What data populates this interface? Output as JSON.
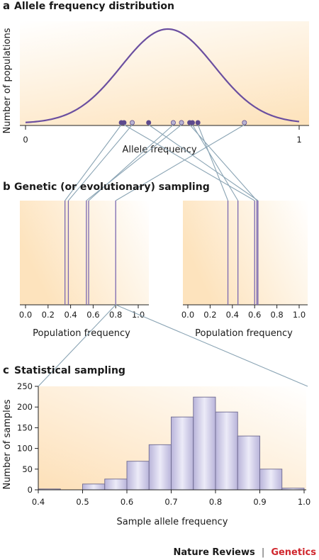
{
  "panels": {
    "a": {
      "letter": "a",
      "title": "Allele frequency distribution"
    },
    "b": {
      "letter": "b",
      "title": "Genetic (or evolutionary) sampling"
    },
    "c": {
      "letter": "c",
      "title": "Statistical sampling"
    }
  },
  "footer": {
    "publisher": "Nature Reviews",
    "separator": "|",
    "journal": "Genetics"
  },
  "colors": {
    "curve": "#6b4fa0",
    "line": "#7a68b0",
    "connector": "#8aa4b4",
    "dot": "#b9b4d2",
    "bar": "#c4c0e0",
    "bar_edge": "#6e6a90",
    "bg": "#fde6c4",
    "accent": "#d0272e"
  },
  "chart_data": [
    {
      "id": "a",
      "type": "line",
      "title": "Allele frequency distribution",
      "xlabel": "Allele frequency",
      "ylabel": "Number of populations",
      "xlim": [
        0,
        1
      ],
      "x_ticks": [
        "0",
        "1"
      ],
      "curve": {
        "mean": 0.52,
        "sd": 0.17
      },
      "points": [
        0.35,
        0.36,
        0.39,
        0.45,
        0.54,
        0.57,
        0.6,
        0.61,
        0.63,
        0.8
      ]
    },
    {
      "id": "b-left",
      "type": "line",
      "xlabel": "Population frequency",
      "xlim": [
        0,
        1
      ],
      "x_ticks": [
        "0.0",
        "0.2",
        "0.4",
        "0.6",
        "0.8",
        "1.0"
      ],
      "lines": [
        0.35,
        0.38,
        0.54,
        0.56,
        0.8
      ]
    },
    {
      "id": "b-right",
      "type": "line",
      "xlabel": "Population frequency",
      "xlim": [
        0,
        1
      ],
      "x_ticks": [
        "0.0",
        "0.2",
        "0.4",
        "0.6",
        "0.8",
        "1.0"
      ],
      "lines": [
        0.36,
        0.45,
        0.6,
        0.62,
        0.63
      ]
    },
    {
      "id": "c",
      "type": "bar",
      "title": "Statistical sampling",
      "xlabel": "Sample allele frequency",
      "ylabel": "Number of samples",
      "xlim": [
        0.4,
        1.0
      ],
      "ylim": [
        0,
        250
      ],
      "x_ticks": [
        "0.4",
        "0.5",
        "0.6",
        "0.7",
        "0.8",
        "0.9",
        "1.0"
      ],
      "y_ticks": [
        "0",
        "50",
        "100",
        "150",
        "200",
        "250"
      ],
      "bins": [
        {
          "from": 0.4,
          "to": 0.45,
          "value": 2
        },
        {
          "from": 0.5,
          "to": 0.55,
          "value": 14
        },
        {
          "from": 0.55,
          "to": 0.6,
          "value": 26
        },
        {
          "from": 0.6,
          "to": 0.65,
          "value": 69
        },
        {
          "from": 0.65,
          "to": 0.7,
          "value": 109
        },
        {
          "from": 0.7,
          "to": 0.75,
          "value": 176
        },
        {
          "from": 0.75,
          "to": 0.8,
          "value": 224
        },
        {
          "from": 0.8,
          "to": 0.85,
          "value": 188
        },
        {
          "from": 0.85,
          "to": 0.9,
          "value": 130
        },
        {
          "from": 0.9,
          "to": 0.95,
          "value": 50
        },
        {
          "from": 0.95,
          "to": 1.0,
          "value": 4
        }
      ],
      "source_line": 0.8
    }
  ]
}
